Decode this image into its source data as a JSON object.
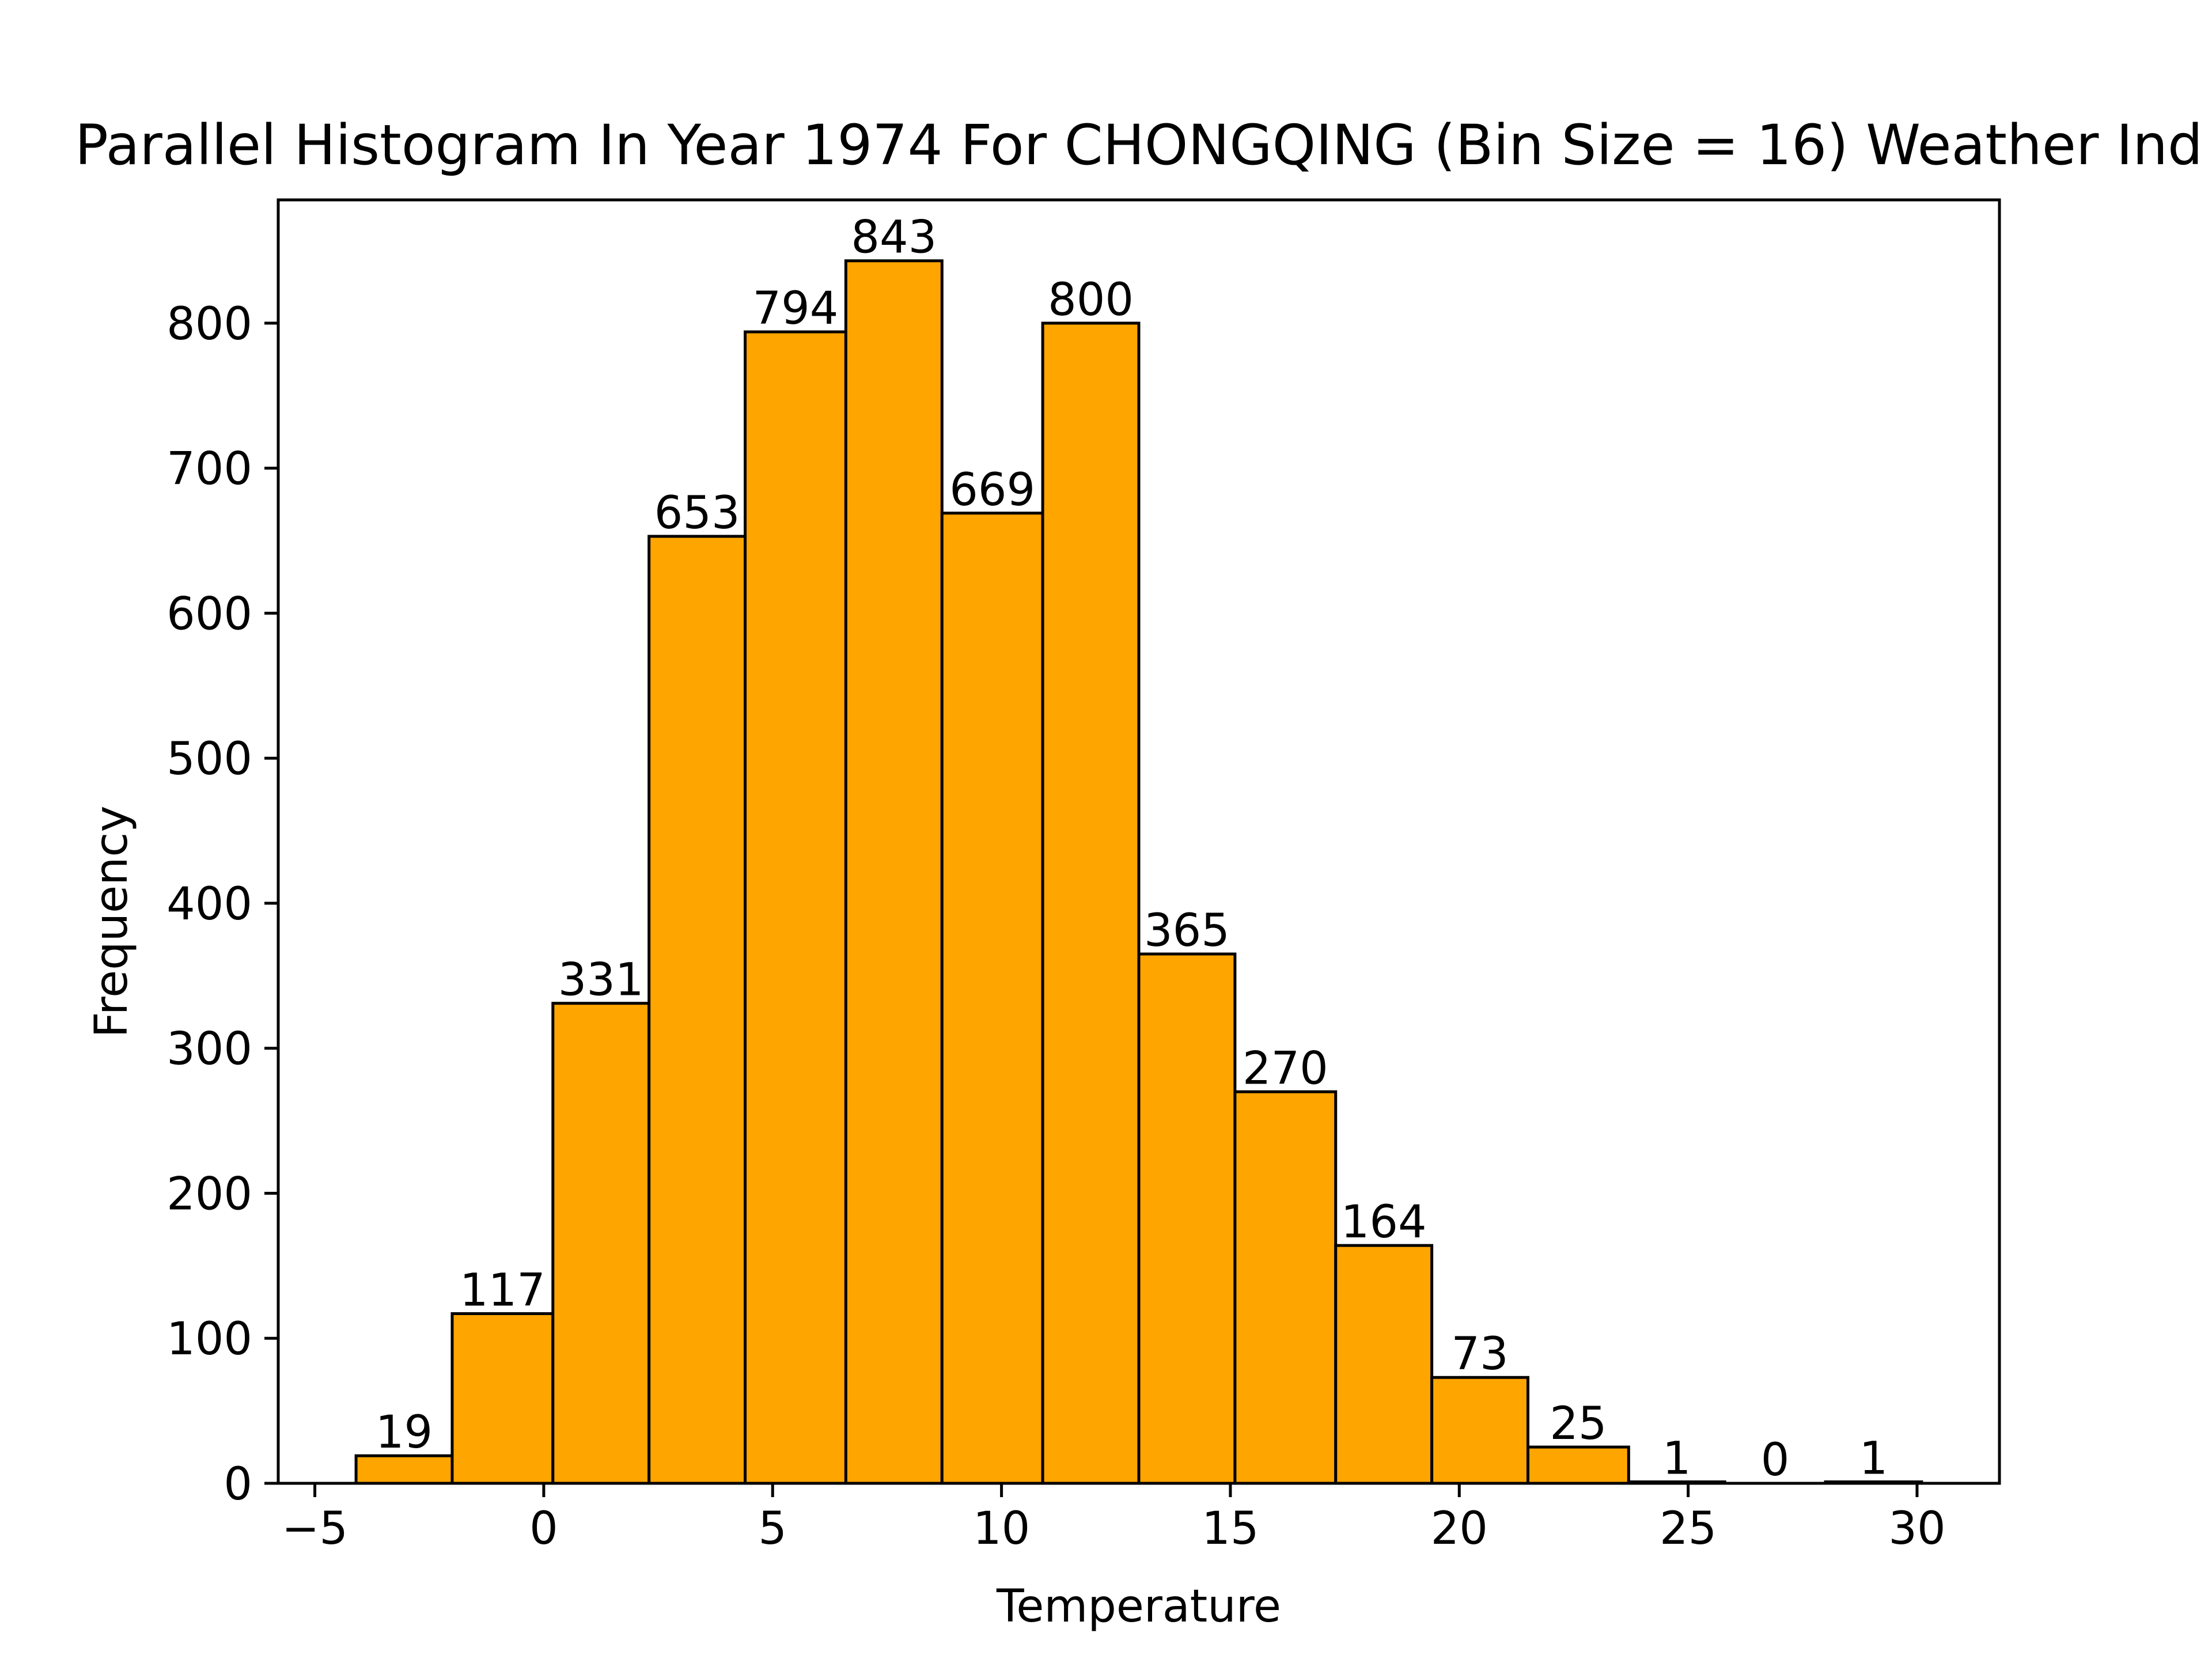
{
  "chart_data": {
    "type": "bar",
    "title": "Parallel Histogram In Year 1974 For CHONGQING (Bin Size = 16) Weather Ind",
    "xlabel": "Temperature",
    "ylabel": "Frequency",
    "bin_edges": [
      -4.1,
      -2.0,
      0.2,
      2.3,
      4.4,
      6.6,
      8.7,
      10.9,
      13.0,
      15.1,
      17.3,
      19.4,
      21.5,
      23.7,
      25.8,
      28.0,
      30.1
    ],
    "values": [
      19,
      117,
      331,
      653,
      794,
      843,
      669,
      800,
      365,
      270,
      164,
      73,
      25,
      1,
      0,
      1
    ],
    "xlim": [
      -5.8,
      31.8
    ],
    "ylim": [
      0,
      885
    ],
    "xticks": [
      -5,
      0,
      5,
      10,
      15,
      20,
      25,
      30
    ],
    "xtick_labels": [
      "−5",
      "0",
      "5",
      "10",
      "15",
      "20",
      "25",
      "30"
    ],
    "yticks": [
      0,
      100,
      200,
      300,
      400,
      500,
      600,
      700,
      800
    ],
    "bar_color": "#ffa500",
    "edge_color": "#000000",
    "grid": false
  }
}
